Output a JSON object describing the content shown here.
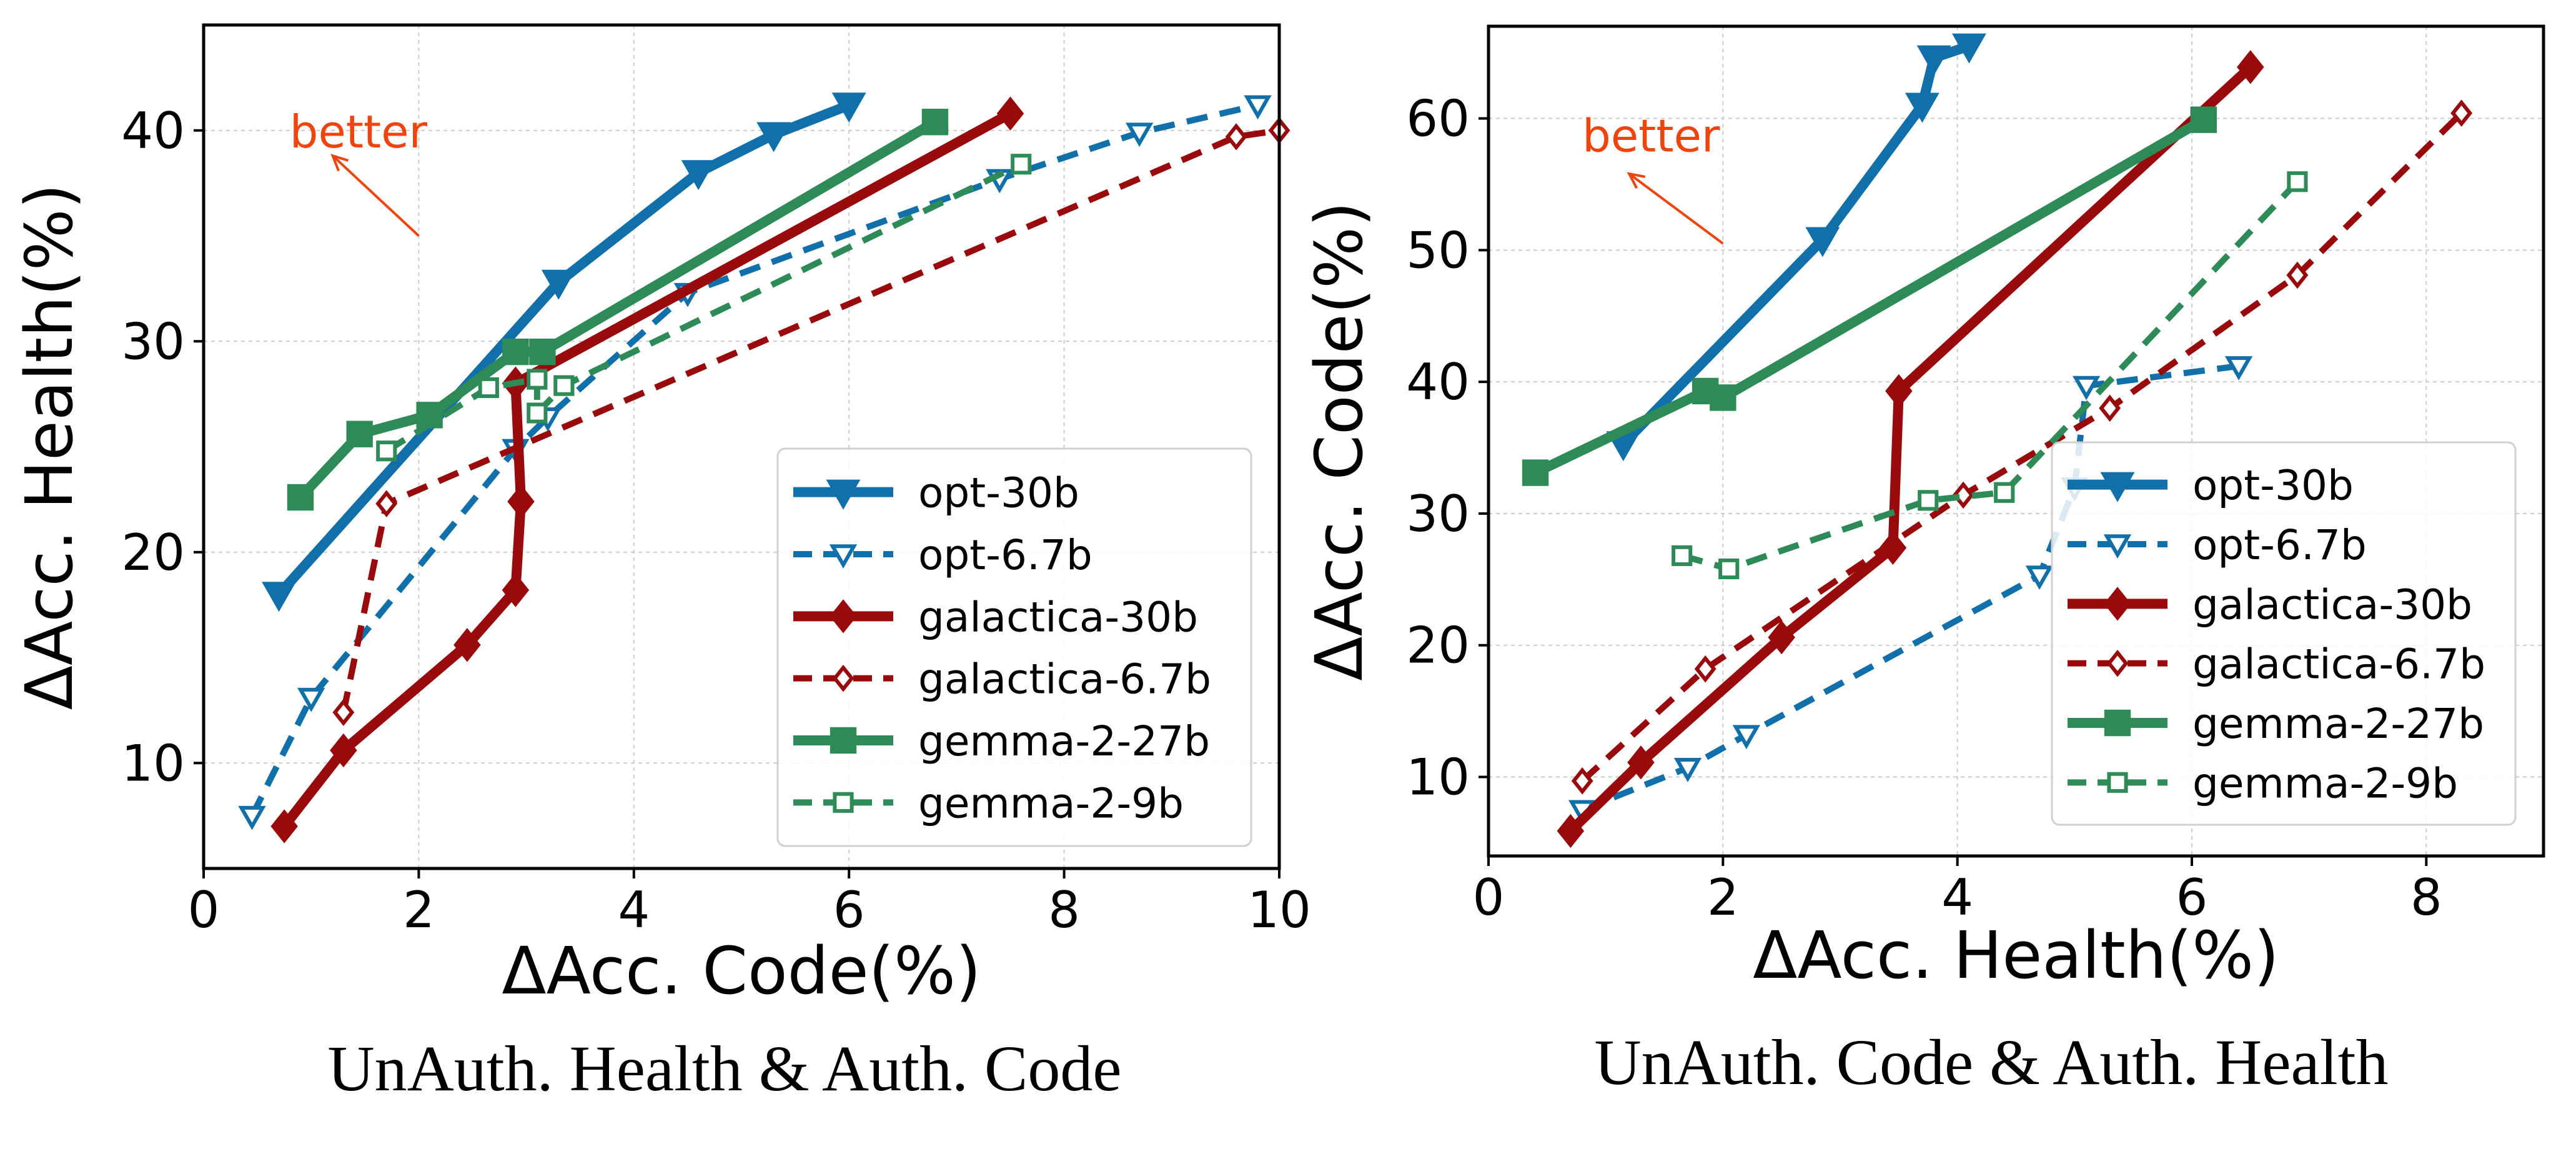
{
  "colors": {
    "opt": "#1170aa",
    "galactica": "#990a0c",
    "gemma": "#2e8b57",
    "better": "#f0440f",
    "grid": "#cccccc"
  },
  "chart_data": [
    {
      "type": "line",
      "title": "",
      "caption": "UnAuth. Health & Auth. Code",
      "xlabel": "ΔAcc. Code(%)",
      "ylabel": "ΔAcc. Health(%)",
      "xlim": [
        0,
        10
      ],
      "ylim": [
        5,
        45
      ],
      "xticks": [
        0,
        2,
        4,
        6,
        8,
        10
      ],
      "yticks": [
        10,
        20,
        30,
        40
      ],
      "grid": true,
      "legend_position": "lower-right",
      "annotation": {
        "text": "better",
        "arrow_from": [
          2.0,
          35.0
        ],
        "arrow_to": [
          1.2,
          38.8
        ],
        "text_at": [
          0.8,
          39.2
        ]
      },
      "series": [
        {
          "name": "opt-30b",
          "family": "opt",
          "style": "solid",
          "marker": "tri-down",
          "filled": true,
          "x": [
            0.7,
            3.3,
            4.6,
            5.3,
            6.0
          ],
          "y": [
            18.0,
            32.8,
            38.0,
            39.8,
            41.2
          ]
        },
        {
          "name": "opt-6.7b",
          "family": "opt",
          "style": "dashed",
          "marker": "tri-down",
          "filled": false,
          "x": [
            0.45,
            1.0,
            2.9,
            3.2,
            4.5,
            7.4,
            8.7,
            9.8
          ],
          "y": [
            7.5,
            13.1,
            24.9,
            26.4,
            32.3,
            37.7,
            39.9,
            41.2
          ]
        },
        {
          "name": "galactica-30b",
          "family": "galactica",
          "style": "solid",
          "marker": "diamond",
          "filled": true,
          "x": [
            0.75,
            1.3,
            2.45,
            2.9,
            2.95,
            2.9,
            7.5
          ],
          "y": [
            7.0,
            10.6,
            15.6,
            18.2,
            22.4,
            28.0,
            40.8
          ]
        },
        {
          "name": "galactica-6.7b",
          "family": "galactica",
          "style": "dashed",
          "marker": "diamond",
          "filled": false,
          "x": [
            1.3,
            1.7,
            9.6,
            10.0
          ],
          "y": [
            12.4,
            22.3,
            39.7,
            40.0
          ]
        },
        {
          "name": "gemma-2-27b",
          "family": "gemma",
          "style": "solid",
          "marker": "square",
          "filled": true,
          "x": [
            0.9,
            1.45,
            2.1,
            2.9,
            3.15,
            6.8
          ],
          "y": [
            22.6,
            25.6,
            26.5,
            29.5,
            29.5,
            40.4
          ]
        },
        {
          "name": "gemma-2-9b",
          "family": "gemma",
          "style": "dashed",
          "marker": "square",
          "filled": false,
          "x": [
            1.7,
            2.65,
            3.1,
            3.1,
            3.35,
            7.6
          ],
          "y": [
            24.8,
            27.8,
            28.2,
            26.6,
            27.9,
            38.4
          ]
        }
      ]
    },
    {
      "type": "line",
      "title": "",
      "caption": "UnAuth. Code & Auth. Health",
      "xlabel": "ΔAcc. Health(%)",
      "ylabel": "ΔAcc. Code(%)",
      "xlim": [
        0,
        9
      ],
      "ylim": [
        4,
        67
      ],
      "xticks": [
        0,
        2,
        4,
        6,
        8
      ],
      "yticks": [
        10,
        20,
        30,
        40,
        50,
        60
      ],
      "grid": true,
      "legend_position": "lower-right",
      "annotation": {
        "text": "better",
        "arrow_from": [
          2.0,
          50.5
        ],
        "arrow_to": [
          1.2,
          55.8
        ],
        "text_at": [
          0.8,
          57.5
        ]
      },
      "series": [
        {
          "name": "opt-30b",
          "family": "opt",
          "style": "solid",
          "marker": "tri-down",
          "filled": true,
          "x": [
            1.15,
            2.85,
            3.7,
            3.8,
            4.1
          ],
          "y": [
            35.3,
            50.8,
            61.0,
            64.6,
            65.5
          ]
        },
        {
          "name": "opt-6.7b",
          "family": "opt",
          "style": "dashed",
          "marker": "tri-down",
          "filled": false,
          "x": [
            0.8,
            1.7,
            2.2,
            4.7,
            5.0,
            5.1,
            6.4
          ],
          "y": [
            7.5,
            10.7,
            13.2,
            25.3,
            32.0,
            39.7,
            41.2
          ]
        },
        {
          "name": "galactica-30b",
          "family": "galactica",
          "style": "solid",
          "marker": "diamond",
          "filled": true,
          "x": [
            0.7,
            1.3,
            2.5,
            3.45,
            3.5,
            6.5
          ],
          "y": [
            5.9,
            11.1,
            20.6,
            27.4,
            39.3,
            63.9
          ]
        },
        {
          "name": "galactica-6.7b",
          "family": "galactica",
          "style": "dashed",
          "marker": "diamond",
          "filled": false,
          "x": [
            0.8,
            1.85,
            4.05,
            5.3,
            6.9,
            8.3
          ],
          "y": [
            9.7,
            18.2,
            31.4,
            38.0,
            48.1,
            60.4
          ]
        },
        {
          "name": "gemma-2-27b",
          "family": "gemma",
          "style": "solid",
          "marker": "square",
          "filled": true,
          "x": [
            0.4,
            1.85,
            2.0,
            6.1
          ],
          "y": [
            33.1,
            39.3,
            38.8,
            59.9
          ]
        },
        {
          "name": "gemma-2-9b",
          "family": "gemma",
          "style": "dashed",
          "marker": "square",
          "filled": false,
          "x": [
            1.65,
            2.05,
            3.75,
            4.4,
            6.9
          ],
          "y": [
            26.8,
            25.8,
            31.0,
            31.6,
            55.2
          ]
        }
      ]
    }
  ]
}
